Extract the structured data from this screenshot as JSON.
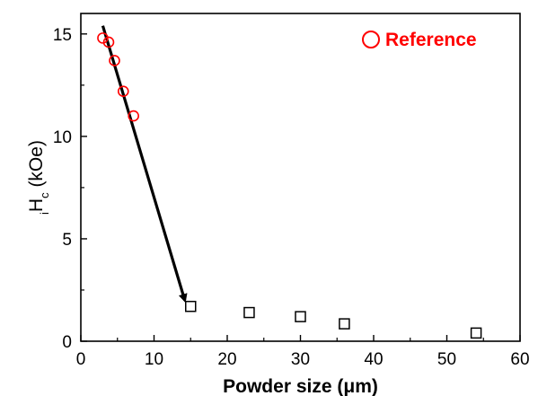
{
  "chart_data": {
    "type": "scatter",
    "title": "",
    "xlabel": "Powder size (μm)",
    "ylabel_prefix": "H",
    "ylabel_sub_left": "i",
    "ylabel_sub_right": "c",
    "ylabel_units": " (kOe)",
    "xlim": [
      0,
      60
    ],
    "ylim": [
      0,
      16
    ],
    "xticks": [
      0,
      10,
      20,
      30,
      40,
      50,
      60
    ],
    "yticks": [
      0,
      5,
      10,
      15
    ],
    "grid": false,
    "legend_position": "top-right",
    "series": [
      {
        "name": "Reference",
        "marker": "circle",
        "color": "#ff0000",
        "x": [
          3.0,
          3.8,
          4.6,
          5.8,
          7.2
        ],
        "y": [
          14.8,
          14.6,
          13.7,
          12.2,
          11.0
        ]
      },
      {
        "marker": "square",
        "color": "#000000",
        "x": [
          15,
          23,
          30,
          36,
          54
        ],
        "y": [
          1.7,
          1.4,
          1.2,
          0.85,
          0.4
        ]
      }
    ],
    "annotations": [
      {
        "type": "arrow",
        "from": [
          3.0,
          15.4
        ],
        "to": [
          14.2,
          2.0
        ],
        "color": "#000000"
      }
    ]
  }
}
